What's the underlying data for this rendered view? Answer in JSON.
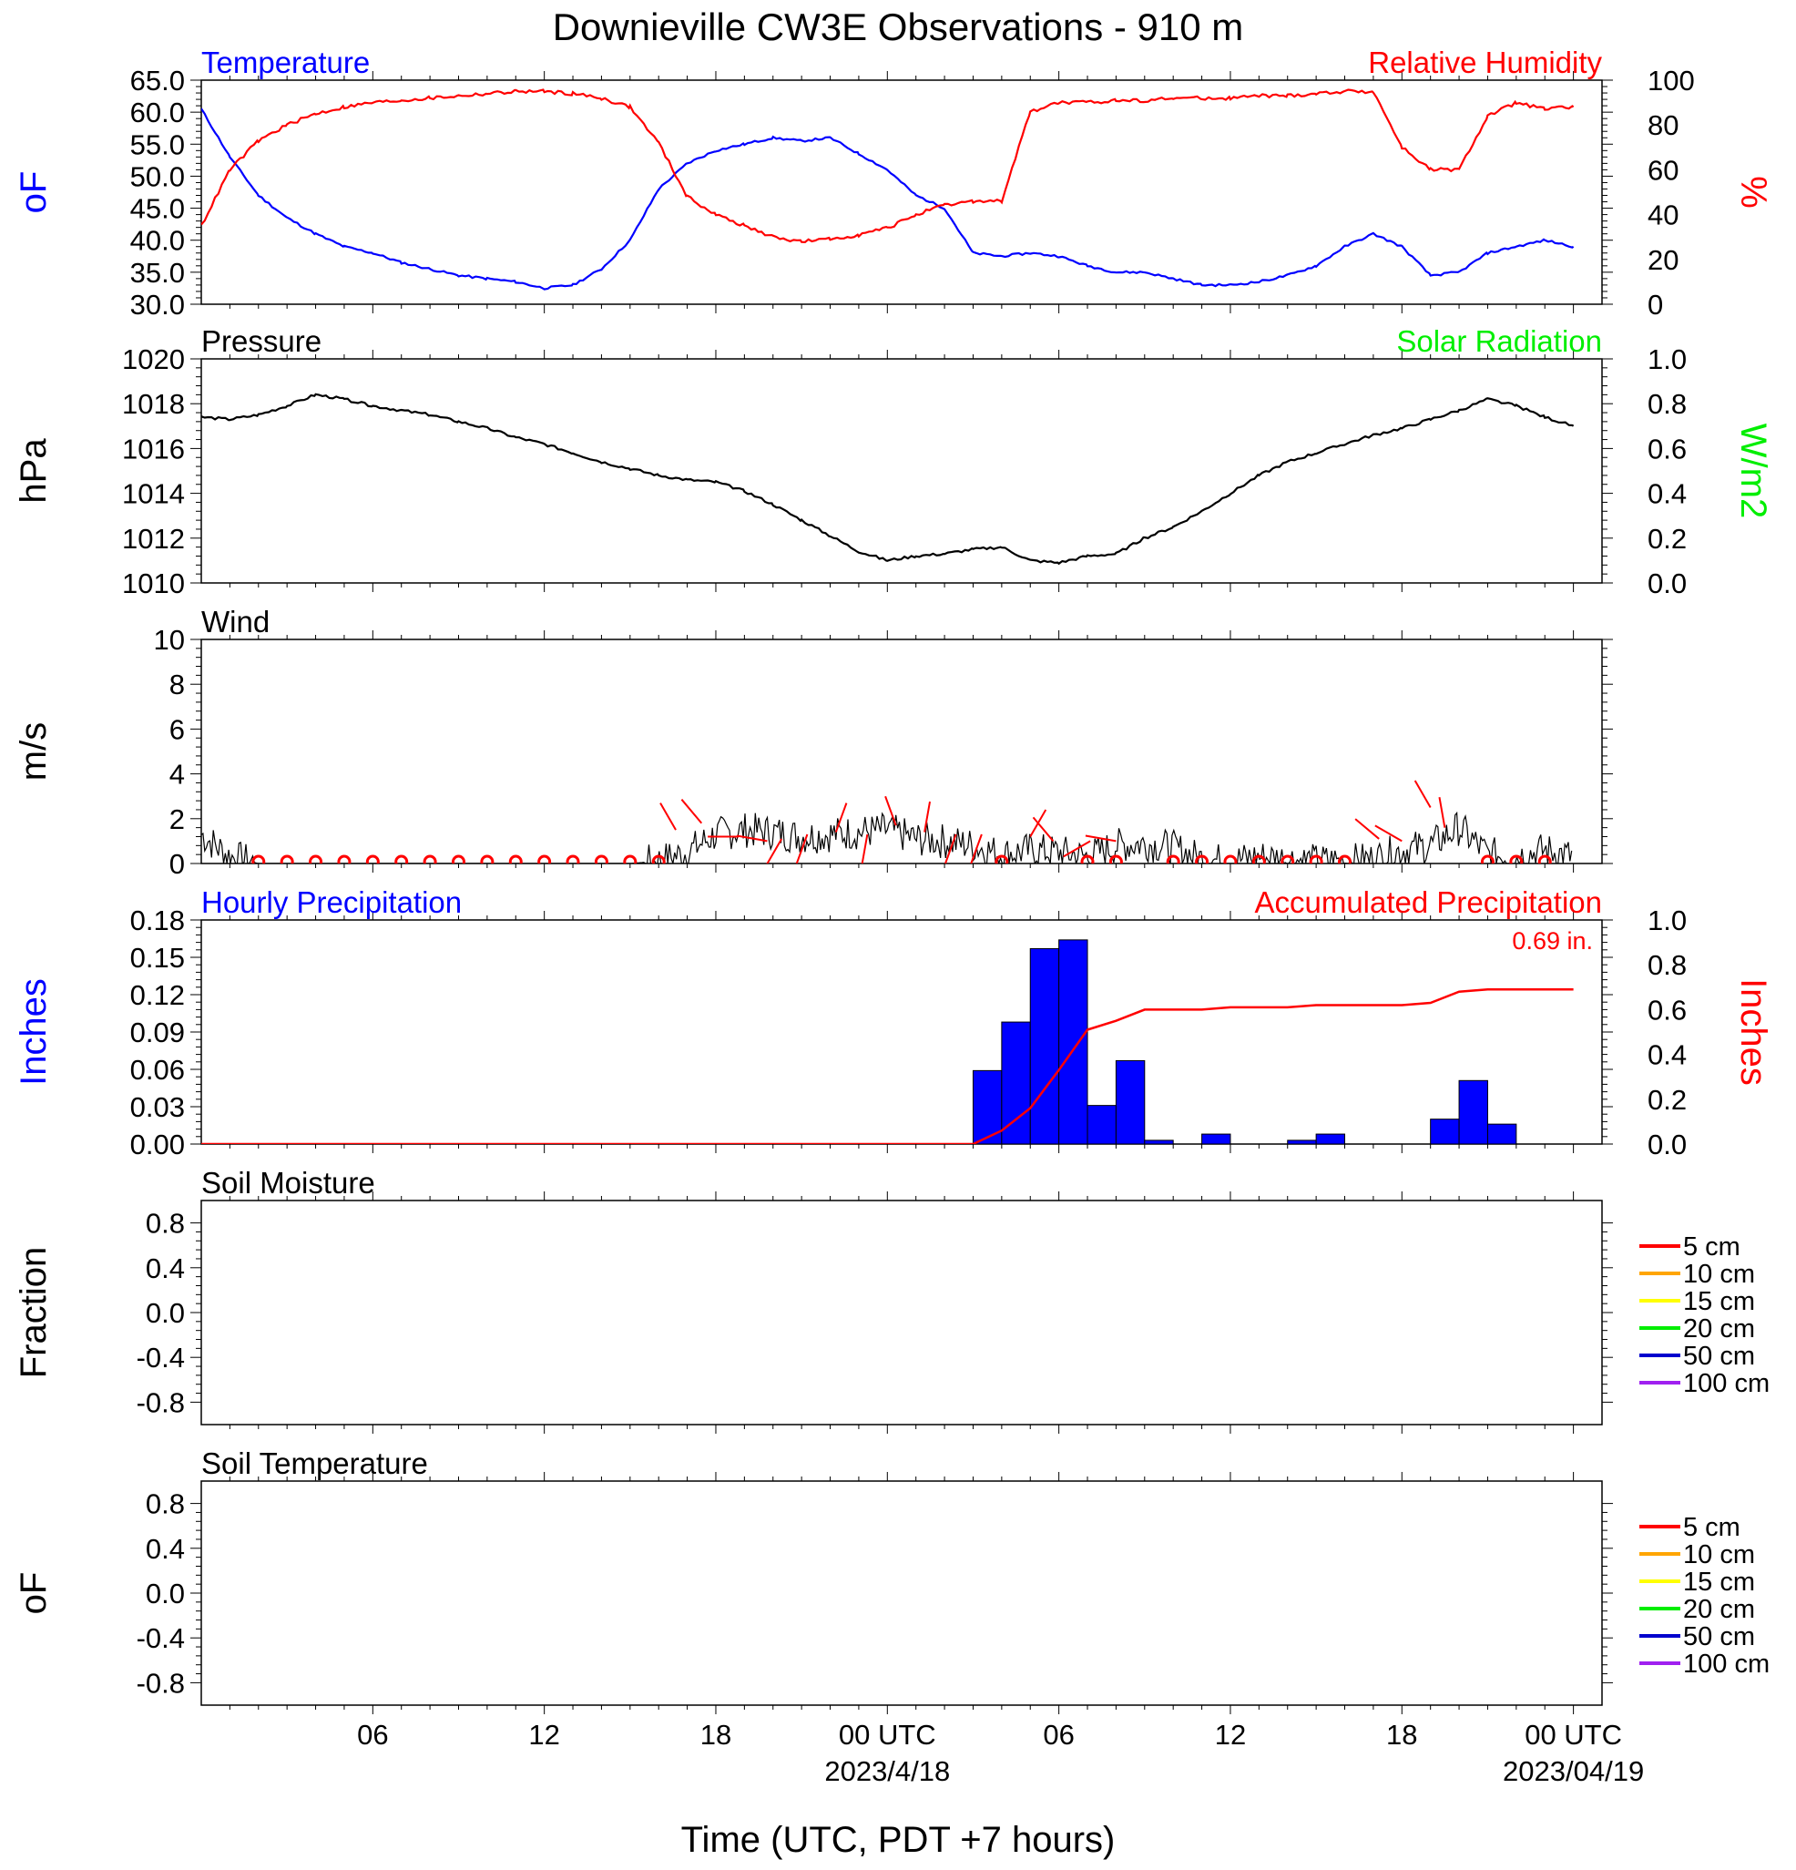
{
  "title": "Downieville CW3E Observations - 910 m",
  "x_axis": {
    "title": "Time (UTC, PDT +7 hours)",
    "ticks": [
      {
        "t": 6,
        "label": "06",
        "sub": ""
      },
      {
        "t": 12,
        "label": "12",
        "sub": ""
      },
      {
        "t": 18,
        "label": "18",
        "sub": ""
      },
      {
        "t": 24,
        "label": "00 UTC",
        "sub": "2023/4/18"
      },
      {
        "t": 30,
        "label": "06",
        "sub": ""
      },
      {
        "t": 36,
        "label": "12",
        "sub": ""
      },
      {
        "t": 42,
        "label": "18",
        "sub": ""
      },
      {
        "t": 48,
        "label": "00 UTC",
        "sub": "2023/04/19"
      }
    ]
  },
  "colors": {
    "blue": "#0000ff",
    "red": "#ff0000",
    "green": "#00ee00",
    "black": "#000000",
    "soil": [
      "#ff0000",
      "#ffa500",
      "#ffff00",
      "#00ee00",
      "#0000cd",
      "#a020f0"
    ]
  },
  "chart_data": [
    {
      "type": "line",
      "left_title": "Temperature",
      "right_title": "Relative Humidity",
      "left_axis_label": "oF",
      "right_axis_label": "%",
      "ylim_left": [
        30,
        65
      ],
      "ylim_right": [
        0,
        100
      ],
      "left_ticks": [
        "30.0",
        "35.0",
        "40.0",
        "45.0",
        "50.0",
        "55.0",
        "60.0",
        "65.0"
      ],
      "right_ticks": [
        "0",
        "20",
        "40",
        "60",
        "80",
        "100"
      ],
      "series": [
        {
          "name": "Temperature",
          "axis": "left",
          "color": "#0000ff",
          "x": [
            0,
            1,
            2,
            3,
            4,
            5,
            6,
            7,
            8,
            9,
            10,
            11,
            12,
            13,
            14,
            15,
            16,
            17,
            18,
            19,
            20,
            21,
            22,
            23,
            24,
            25,
            26,
            27,
            28,
            29,
            30,
            31,
            32,
            33,
            34,
            35,
            36,
            37,
            38,
            39,
            40,
            41,
            42,
            43,
            44,
            45,
            46,
            47,
            48
          ],
          "y": [
            60.5,
            53,
            47,
            43.5,
            41,
            39,
            38,
            36.5,
            35.5,
            34.5,
            34,
            33.5,
            32.5,
            33,
            35.5,
            40,
            48,
            52,
            54,
            55,
            56,
            55.5,
            56,
            53.5,
            51,
            47,
            45,
            38,
            37.5,
            38,
            37.5,
            36,
            35,
            35,
            34,
            33,
            33,
            33.5,
            34.5,
            36,
            39,
            41,
            39,
            34.5,
            35,
            38,
            39,
            40,
            39
          ]
        },
        {
          "name": "Relative Humidity",
          "axis": "right",
          "color": "#ff0000",
          "x": [
            0,
            1,
            2,
            3,
            4,
            5,
            6,
            7,
            8,
            9,
            10,
            11,
            12,
            13,
            14,
            15,
            16,
            17,
            18,
            19,
            20,
            21,
            22,
            23,
            24,
            25,
            26,
            27,
            28,
            29,
            30,
            31,
            32,
            33,
            34,
            35,
            36,
            37,
            38,
            39,
            40,
            41,
            42,
            43,
            44,
            45,
            46,
            47,
            48
          ],
          "y": [
            35,
            60,
            73,
            80,
            85,
            88,
            90,
            91,
            92,
            93,
            94,
            95,
            95,
            94,
            92,
            88,
            72,
            48,
            40,
            35,
            30,
            28,
            29,
            31,
            34,
            40,
            44,
            46,
            46,
            86,
            90,
            90,
            91,
            91,
            92,
            92,
            92,
            93,
            93,
            94,
            95,
            95,
            70,
            60,
            60,
            84,
            90,
            87,
            88
          ]
        }
      ]
    },
    {
      "type": "line",
      "left_title": "Pressure",
      "right_title": "Solar Radiation",
      "left_axis_label": "hPa",
      "right_axis_label": "W/m2",
      "ylim_left": [
        1010,
        1020
      ],
      "ylim_right": [
        0,
        1
      ],
      "left_ticks": [
        "1010",
        "1012",
        "1014",
        "1016",
        "1018",
        "1020"
      ],
      "right_ticks": [
        "0.0",
        "0.2",
        "0.4",
        "0.6",
        "0.8",
        "1.0"
      ],
      "series": [
        {
          "name": "Pressure",
          "axis": "left",
          "color": "#000000",
          "x": [
            0,
            1,
            2,
            3,
            4,
            5,
            6,
            7,
            8,
            9,
            10,
            11,
            12,
            13,
            14,
            15,
            16,
            17,
            18,
            19,
            20,
            21,
            22,
            23,
            24,
            25,
            26,
            27,
            28,
            29,
            30,
            31,
            32,
            33,
            34,
            35,
            36,
            37,
            38,
            39,
            40,
            41,
            42,
            43,
            44,
            45,
            46,
            47,
            48
          ],
          "y": [
            1017.4,
            1017.3,
            1017.5,
            1017.9,
            1018.4,
            1018.2,
            1017.9,
            1017.7,
            1017.5,
            1017.2,
            1016.9,
            1016.5,
            1016.2,
            1015.8,
            1015.4,
            1015.1,
            1014.8,
            1014.6,
            1014.5,
            1014.1,
            1013.5,
            1012.8,
            1012.1,
            1011.4,
            1011.0,
            1011.2,
            1011.3,
            1011.5,
            1011.6,
            1011.0,
            1010.9,
            1011.2,
            1011.3,
            1012.0,
            1012.5,
            1013.2,
            1014.0,
            1014.8,
            1015.4,
            1015.8,
            1016.2,
            1016.6,
            1016.9,
            1017.3,
            1017.7,
            1018.2,
            1017.9,
            1017.4,
            1017.0
          ]
        }
      ]
    },
    {
      "type": "line",
      "left_title": "Wind",
      "left_axis_label": "m/s",
      "ylim_left": [
        0,
        10
      ],
      "left_ticks": [
        "0",
        "2",
        "4",
        "6",
        "8",
        "10"
      ],
      "series": [
        {
          "name": "Wind",
          "axis": "left",
          "color": "#000000",
          "x": [
            0,
            1,
            2,
            3,
            4,
            5,
            6,
            7,
            8,
            9,
            10,
            11,
            12,
            13,
            14,
            15,
            16,
            17,
            18,
            19,
            20,
            21,
            22,
            23,
            24,
            25,
            26,
            27,
            28,
            29,
            30,
            31,
            32,
            33,
            34,
            35,
            36,
            37,
            38,
            39,
            40,
            41,
            42,
            43,
            44,
            45,
            46,
            47,
            48
          ],
          "y": [
            1.3,
            0.3,
            0,
            0,
            0,
            0,
            0,
            0,
            0,
            0,
            0,
            0,
            0,
            0,
            0,
            0,
            0.1,
            0.5,
            1.3,
            1.5,
            1.4,
            1.2,
            1.3,
            1.4,
            1.5,
            1.1,
            1.0,
            0.8,
            0.4,
            0.6,
            0.5,
            0.3,
            0.8,
            0.9,
            0.7,
            0.2,
            0.1,
            0.3,
            0.2,
            0.1,
            0.1,
            0.2,
            0.6,
            0.8,
            1.6,
            0.4,
            0.3,
            0.6,
            0.3
          ]
        }
      ],
      "calm_markers_hours": [
        2,
        3,
        4,
        5,
        6,
        7,
        8,
        9,
        10,
        11,
        12,
        13,
        14,
        15,
        16,
        28,
        31,
        32,
        34,
        35,
        36,
        37,
        38,
        39,
        40,
        45,
        46,
        47
      ],
      "barbs": [
        {
          "t": 16.6,
          "dir_deg": 330,
          "speed": 1.5
        },
        {
          "t": 17.5,
          "dir_deg": 320,
          "speed": 1.8
        },
        {
          "t": 18.8,
          "dir_deg": 270,
          "speed": 1.2
        },
        {
          "t": 19.8,
          "dir_deg": 280,
          "speed": 1.0
        },
        {
          "t": 20.3,
          "dir_deg": 210,
          "speed": 1.1
        },
        {
          "t": 21.2,
          "dir_deg": 200,
          "speed": 1.3
        },
        {
          "t": 22.2,
          "dir_deg": 20,
          "speed": 1.4
        },
        {
          "t": 23.3,
          "dir_deg": 190,
          "speed": 1.3
        },
        {
          "t": 24.3,
          "dir_deg": 340,
          "speed": 1.7
        },
        {
          "t": 25.3,
          "dir_deg": 10,
          "speed": 1.4
        },
        {
          "t": 26.4,
          "dir_deg": 200,
          "speed": 1.3
        },
        {
          "t": 27.3,
          "dir_deg": 200,
          "speed": 1.3
        },
        {
          "t": 29.0,
          "dir_deg": 30,
          "speed": 1.2
        },
        {
          "t": 29.8,
          "dir_deg": 320,
          "speed": 1.0
        },
        {
          "t": 31.1,
          "dir_deg": 240,
          "speed": 1.0
        },
        {
          "t": 32.0,
          "dir_deg": 280,
          "speed": 1.0
        },
        {
          "t": 41.2,
          "dir_deg": 310,
          "speed": 1.1
        },
        {
          "t": 42.0,
          "dir_deg": 300,
          "speed": 1.0
        },
        {
          "t": 43.0,
          "dir_deg": 330,
          "speed": 2.5
        },
        {
          "t": 43.5,
          "dir_deg": 350,
          "speed": 1.6
        }
      ]
    },
    {
      "type": "bar",
      "left_title": "Hourly Precipitation",
      "right_title": "Accumulated Precipitation",
      "annotation": "0.69 in.",
      "left_axis_label": "Inches",
      "right_axis_label": "Inches",
      "ylim_left": [
        0,
        0.18
      ],
      "ylim_right": [
        0,
        1
      ],
      "left_ticks": [
        "0.00",
        "0.03",
        "0.06",
        "0.09",
        "0.12",
        "0.15",
        "0.18"
      ],
      "right_ticks": [
        "0.0",
        "0.2",
        "0.4",
        "0.6",
        "0.8",
        "1.0"
      ],
      "bars": {
        "name": "Hourly Precipitation",
        "color": "#0000ff",
        "hours": [
          27,
          28,
          29,
          30,
          31,
          32,
          33,
          34,
          35,
          36,
          37,
          38,
          39,
          40,
          41,
          42,
          43,
          44,
          45,
          46,
          47
        ],
        "values": [
          0.059,
          0.098,
          0.157,
          0.164,
          0.031,
          0.067,
          0.003,
          0,
          0.008,
          0,
          0,
          0.003,
          0.008,
          0,
          0,
          0,
          0.02,
          0.051,
          0.016,
          0,
          0
        ]
      },
      "accumulated": {
        "name": "Accumulated Precipitation",
        "color": "#ff0000",
        "x": [
          0,
          27,
          28,
          29,
          30,
          31,
          32,
          33,
          34,
          35,
          36,
          37,
          38,
          39,
          40,
          41,
          42,
          43,
          44,
          45,
          46,
          47,
          48
        ],
        "y": [
          0,
          0,
          0.06,
          0.16,
          0.33,
          0.51,
          0.55,
          0.6,
          0.6,
          0.6,
          0.61,
          0.61,
          0.61,
          0.62,
          0.62,
          0.62,
          0.62,
          0.63,
          0.68,
          0.69,
          0.69,
          0.69,
          0.69
        ]
      }
    },
    {
      "type": "line",
      "left_title": "Soil Moisture",
      "left_axis_label": "Fraction",
      "ylim_left": [
        -1,
        1
      ],
      "left_ticks": [
        "-0.8",
        "-0.4",
        "0.0",
        "0.4",
        "0.8"
      ],
      "series": [],
      "legend": [
        "5 cm",
        "10 cm",
        "15 cm",
        "20 cm",
        "50 cm",
        "100 cm"
      ]
    },
    {
      "type": "line",
      "left_title": "Soil Temperature",
      "left_axis_label": "oF",
      "ylim_left": [
        -1,
        1
      ],
      "left_ticks": [
        "-0.8",
        "-0.4",
        "0.0",
        "0.4",
        "0.8"
      ],
      "series": [],
      "legend": [
        "5 cm",
        "10 cm",
        "15 cm",
        "20 cm",
        "50 cm",
        "100 cm"
      ]
    }
  ]
}
